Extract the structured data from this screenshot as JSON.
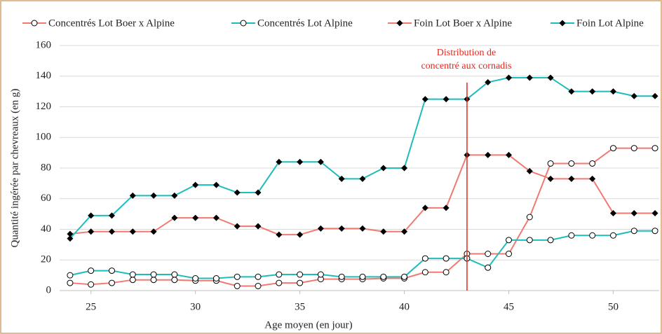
{
  "chart_data": {
    "type": "line",
    "x": [
      24,
      25,
      26,
      27,
      28,
      29,
      30,
      31,
      32,
      33,
      34,
      35,
      36,
      37,
      38,
      39,
      40,
      41,
      42,
      43,
      44,
      45,
      46,
      47,
      48,
      49,
      50,
      51,
      52
    ],
    "series": [
      {
        "name": "Concentrés Lot Boer x Alpine",
        "color": "#f07a72",
        "marker": "circle",
        "values": [
          5,
          4,
          5,
          7,
          7,
          7,
          6.5,
          6.5,
          3,
          3,
          5,
          5,
          7.5,
          7.5,
          7.5,
          8,
          8,
          12,
          12,
          24,
          24,
          24,
          48,
          83,
          83,
          83,
          93,
          93,
          93
        ]
      },
      {
        "name": "Concentrés Lot Alpine",
        "color": "#1fbcbc",
        "marker": "circle",
        "values": [
          10,
          13,
          13,
          10.5,
          10.5,
          10.5,
          8,
          8,
          9,
          9,
          10.5,
          10.5,
          10.5,
          9,
          9,
          9,
          9,
          21,
          21,
          21,
          15,
          33,
          33,
          33,
          36,
          36,
          36,
          39,
          39
        ]
      },
      {
        "name": "Foin Lot Boer x Alpine",
        "color": "#f07a72",
        "marker": "diamond",
        "values": [
          37,
          38.5,
          38.5,
          38.5,
          38.5,
          47.5,
          47.5,
          47.5,
          42,
          42,
          36.5,
          36.5,
          40.5,
          40.5,
          40.5,
          38.5,
          38.5,
          54,
          54,
          88.5,
          88.5,
          88.5,
          78,
          73,
          73,
          73,
          50.5,
          50.5,
          50.5
        ]
      },
      {
        "name": "Foin Lot Alpine",
        "color": "#1fbcbc",
        "marker": "diamond",
        "values": [
          34,
          49,
          49,
          62,
          62,
          62,
          69,
          69,
          64,
          64,
          84,
          84,
          84,
          73,
          73,
          80,
          80,
          125,
          125,
          125,
          136,
          139,
          139,
          139,
          130,
          130,
          130,
          127,
          127
        ]
      }
    ],
    "xlabel": "Age moyen (en jour)",
    "ylabel": "Quantité ingérée par chevreaux (en g)",
    "xlim": [
      23.5,
      52.2
    ],
    "xticks": [
      25,
      30,
      35,
      40,
      45,
      50
    ],
    "ylim": [
      0,
      160
    ],
    "yticks": [
      0,
      20,
      40,
      60,
      80,
      100,
      120,
      140,
      160
    ],
    "grid": true,
    "annotation": {
      "lines": [
        "Distribution de",
        "concentré aux cornadis"
      ],
      "x": 43,
      "color": "#e8261c"
    }
  }
}
